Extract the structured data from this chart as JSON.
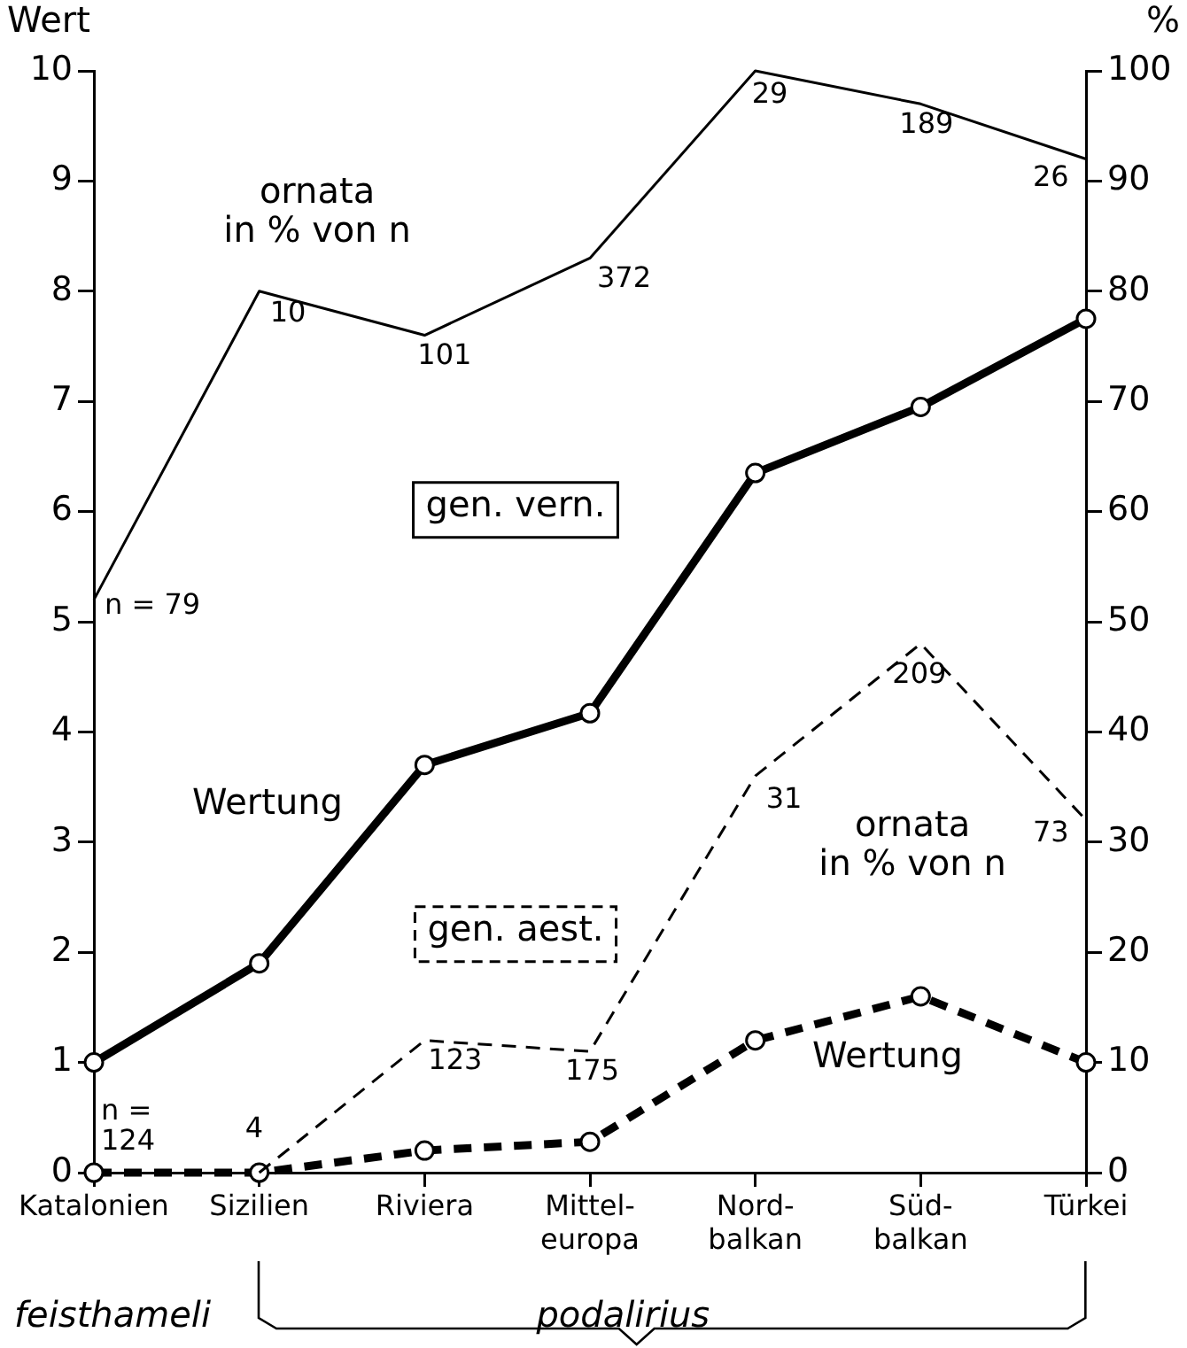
{
  "chart_data": {
    "type": "line",
    "ylabel": "Wert",
    "y2label": "%",
    "categories": [
      "Katalonien",
      "Sizilien",
      "Riviera",
      "Mittel-\neuropa",
      "Nord-\nbalkan",
      "Süd-\nbalkan",
      "Türkei"
    ],
    "series": [
      {
        "name": "ornata\nin % von n",
        "color": "#000000",
        "axis": "y2",
        "line_style": "solid",
        "marker": "none",
        "values": [
          52,
          80,
          76,
          83,
          100,
          97,
          92
        ]
      },
      {
        "name": "Wertung",
        "color": "#000000",
        "axis": "y",
        "line_style": "solid",
        "marker": "circle",
        "values": [
          1.0,
          1.9,
          3.7,
          4.17,
          6.35,
          6.95,
          7.75
        ]
      },
      {
        "name": "ornata\nin % von n",
        "color": "#000000",
        "axis": "y2",
        "line_style": "dashed",
        "marker": "none",
        "values": [
          null,
          0,
          12,
          11,
          36,
          48,
          32
        ]
      },
      {
        "name": "Wertung",
        "color": "#000000",
        "axis": "y",
        "line_style": "dashed",
        "marker": "circle",
        "values": [
          0,
          0,
          0.2,
          0.28,
          1.2,
          1.6,
          1.0
        ]
      }
    ],
    "ylim": [
      0,
      10
    ],
    "yticks": [
      0,
      1,
      2,
      3,
      4,
      5,
      6,
      7,
      8,
      9,
      10
    ],
    "y2lim": [
      0,
      100
    ],
    "y2ticks": [
      0,
      10,
      20,
      30,
      40,
      50,
      60,
      70,
      80,
      90,
      100
    ],
    "grid": false,
    "legend": false,
    "annotations": [
      {
        "text": "n = 79",
        "x": "Katalonien",
        "y": 5.2
      },
      {
        "text": "10",
        "x": "Sizilien",
        "y": 8.0
      },
      {
        "text": "101",
        "x": "Riviera",
        "y": 7.6
      },
      {
        "text": "372",
        "x": "Mittel-\neuropa",
        "y": 8.3
      },
      {
        "text": "29",
        "x": "Nord-\nbalkan",
        "y": 10
      },
      {
        "text": "189",
        "x": "Süd-\nbalkan",
        "y": 9.7
      },
      {
        "text": "26",
        "x": "Türkei",
        "y": 9.2
      },
      {
        "text": "n =\n124",
        "x": "Katalonien",
        "y": 0
      },
      {
        "text": "4",
        "x": "Sizilien",
        "y": 0
      },
      {
        "text": "123",
        "x": "Riviera",
        "y": 1.2
      },
      {
        "text": "175",
        "x": "Mittel-\neuropa",
        "y": 1.1
      },
      {
        "text": "31",
        "x": "Nord-\nbalkan",
        "y": 3.6
      },
      {
        "text": "209",
        "x": "Süd-\nbalkan",
        "y": 4.8
      },
      {
        "text": "73",
        "x": "Türkei",
        "y": 3.2
      },
      "gen. vern.",
      "gen. aest.",
      "feisthameli",
      "podalirius"
    ]
  }
}
